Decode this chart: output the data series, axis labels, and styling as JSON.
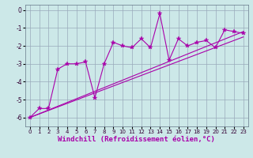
{
  "xlabel": "Windchill (Refroidissement éolien,°C)",
  "bg_color": "#cce8e8",
  "grid_color": "#99aabb",
  "line_color": "#aa00aa",
  "xlim": [
    -0.5,
    23.5
  ],
  "ylim": [
    -6.5,
    0.3
  ],
  "xticks": [
    0,
    1,
    2,
    3,
    4,
    5,
    6,
    7,
    8,
    9,
    10,
    11,
    12,
    13,
    14,
    15,
    16,
    17,
    18,
    19,
    20,
    21,
    22,
    23
  ],
  "yticks": [
    0,
    -1,
    -2,
    -3,
    -4,
    -5,
    -6
  ],
  "jagged_x": [
    0,
    1,
    2,
    3,
    4,
    5,
    6,
    7,
    8,
    9,
    10,
    11,
    12,
    13,
    14,
    15,
    16,
    17,
    18,
    19,
    20,
    21,
    22,
    23
  ],
  "jagged_y": [
    -6.0,
    -5.5,
    -5.5,
    -3.3,
    -3.0,
    -3.0,
    -2.9,
    -4.9,
    -3.0,
    -1.8,
    -2.0,
    -2.1,
    -1.6,
    -2.1,
    -0.2,
    -2.8,
    -1.6,
    -2.0,
    -1.8,
    -1.7,
    -2.1,
    -1.1,
    -1.2,
    -1.3
  ],
  "line1_x": [
    0,
    23
  ],
  "line1_y": [
    -6.0,
    -1.2
  ],
  "line2_x": [
    0,
    23
  ],
  "line2_y": [
    -6.0,
    -1.5
  ],
  "marker": "*",
  "markersize": 4,
  "linewidth": 0.8,
  "tick_fontsize": 5.0,
  "xlabel_fontsize": 6.5
}
